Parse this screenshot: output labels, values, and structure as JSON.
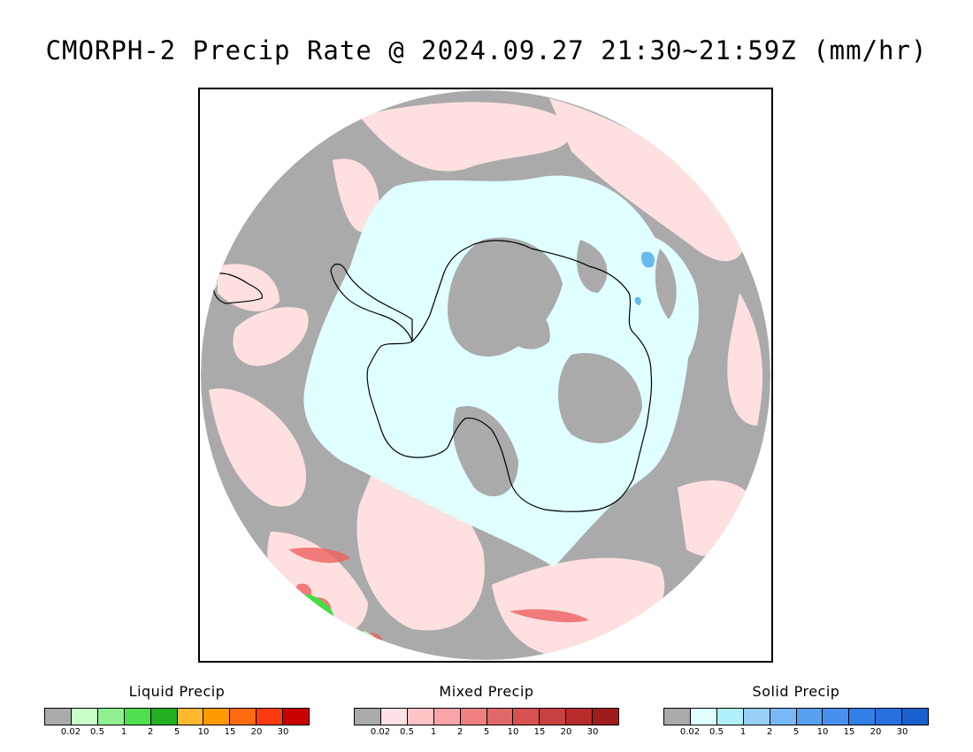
{
  "title": "CMORPH-2 Precip Rate @ 2024.09.27 21:30~21:59Z (mm/hr)",
  "map": {
    "projection": "south-polar-stereographic",
    "region": "Antarctica",
    "colors": {
      "no_precip": "#aaaaaa",
      "mixed_light": "#ffe0e0",
      "solid_light": "#e0ffff",
      "solid_medium": "#a0e8f8",
      "solid_blue": "#4aa8e8",
      "liquid_light": "#c0ffc0",
      "liquid_green": "#44dd44",
      "mixed_red": "#ee6060",
      "coastline": "#000000",
      "background": "#ffffff"
    }
  },
  "legends": [
    {
      "title": "Liquid Precip",
      "colors": [
        "#aaaaaa",
        "#c8ffc8",
        "#8ef08e",
        "#4ee04e",
        "#22b022",
        "#ffb830",
        "#ff9a00",
        "#ff6a10",
        "#ff3a10",
        "#cc0000"
      ],
      "ticks": [
        "0.02",
        "0.5",
        "1",
        "2",
        "5",
        "10",
        "15",
        "20",
        "30"
      ]
    },
    {
      "title": "Mixed Precip",
      "colors": [
        "#aaaaaa",
        "#ffe0e4",
        "#ffc4c8",
        "#f8a4a8",
        "#f08080",
        "#e06868",
        "#d85050",
        "#c84040",
        "#b82c2c",
        "#a01c1c"
      ],
      "ticks": [
        "0.02",
        "0.5",
        "1",
        "2",
        "5",
        "10",
        "15",
        "20",
        "30"
      ]
    },
    {
      "title": "Solid Precip",
      "colors": [
        "#aaaaaa",
        "#e0ffff",
        "#b0f0f8",
        "#98d0f8",
        "#78b8f8",
        "#58a0f0",
        "#4890f0",
        "#3080e8",
        "#2870e0",
        "#1860d0"
      ],
      "ticks": [
        "0.02",
        "0.5",
        "1",
        "2",
        "5",
        "10",
        "15",
        "20",
        "30"
      ]
    }
  ]
}
